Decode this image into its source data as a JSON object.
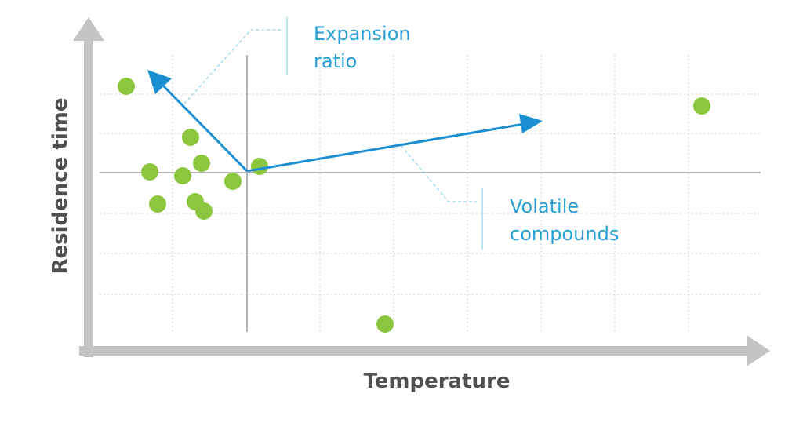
{
  "axes": {
    "y_title": "Residence time",
    "x_title": "Temperature"
  },
  "annotations": [
    {
      "lines": [
        "Expansion",
        "ratio"
      ]
    },
    {
      "lines": [
        "Volatile",
        "compounds"
      ]
    }
  ]
}
